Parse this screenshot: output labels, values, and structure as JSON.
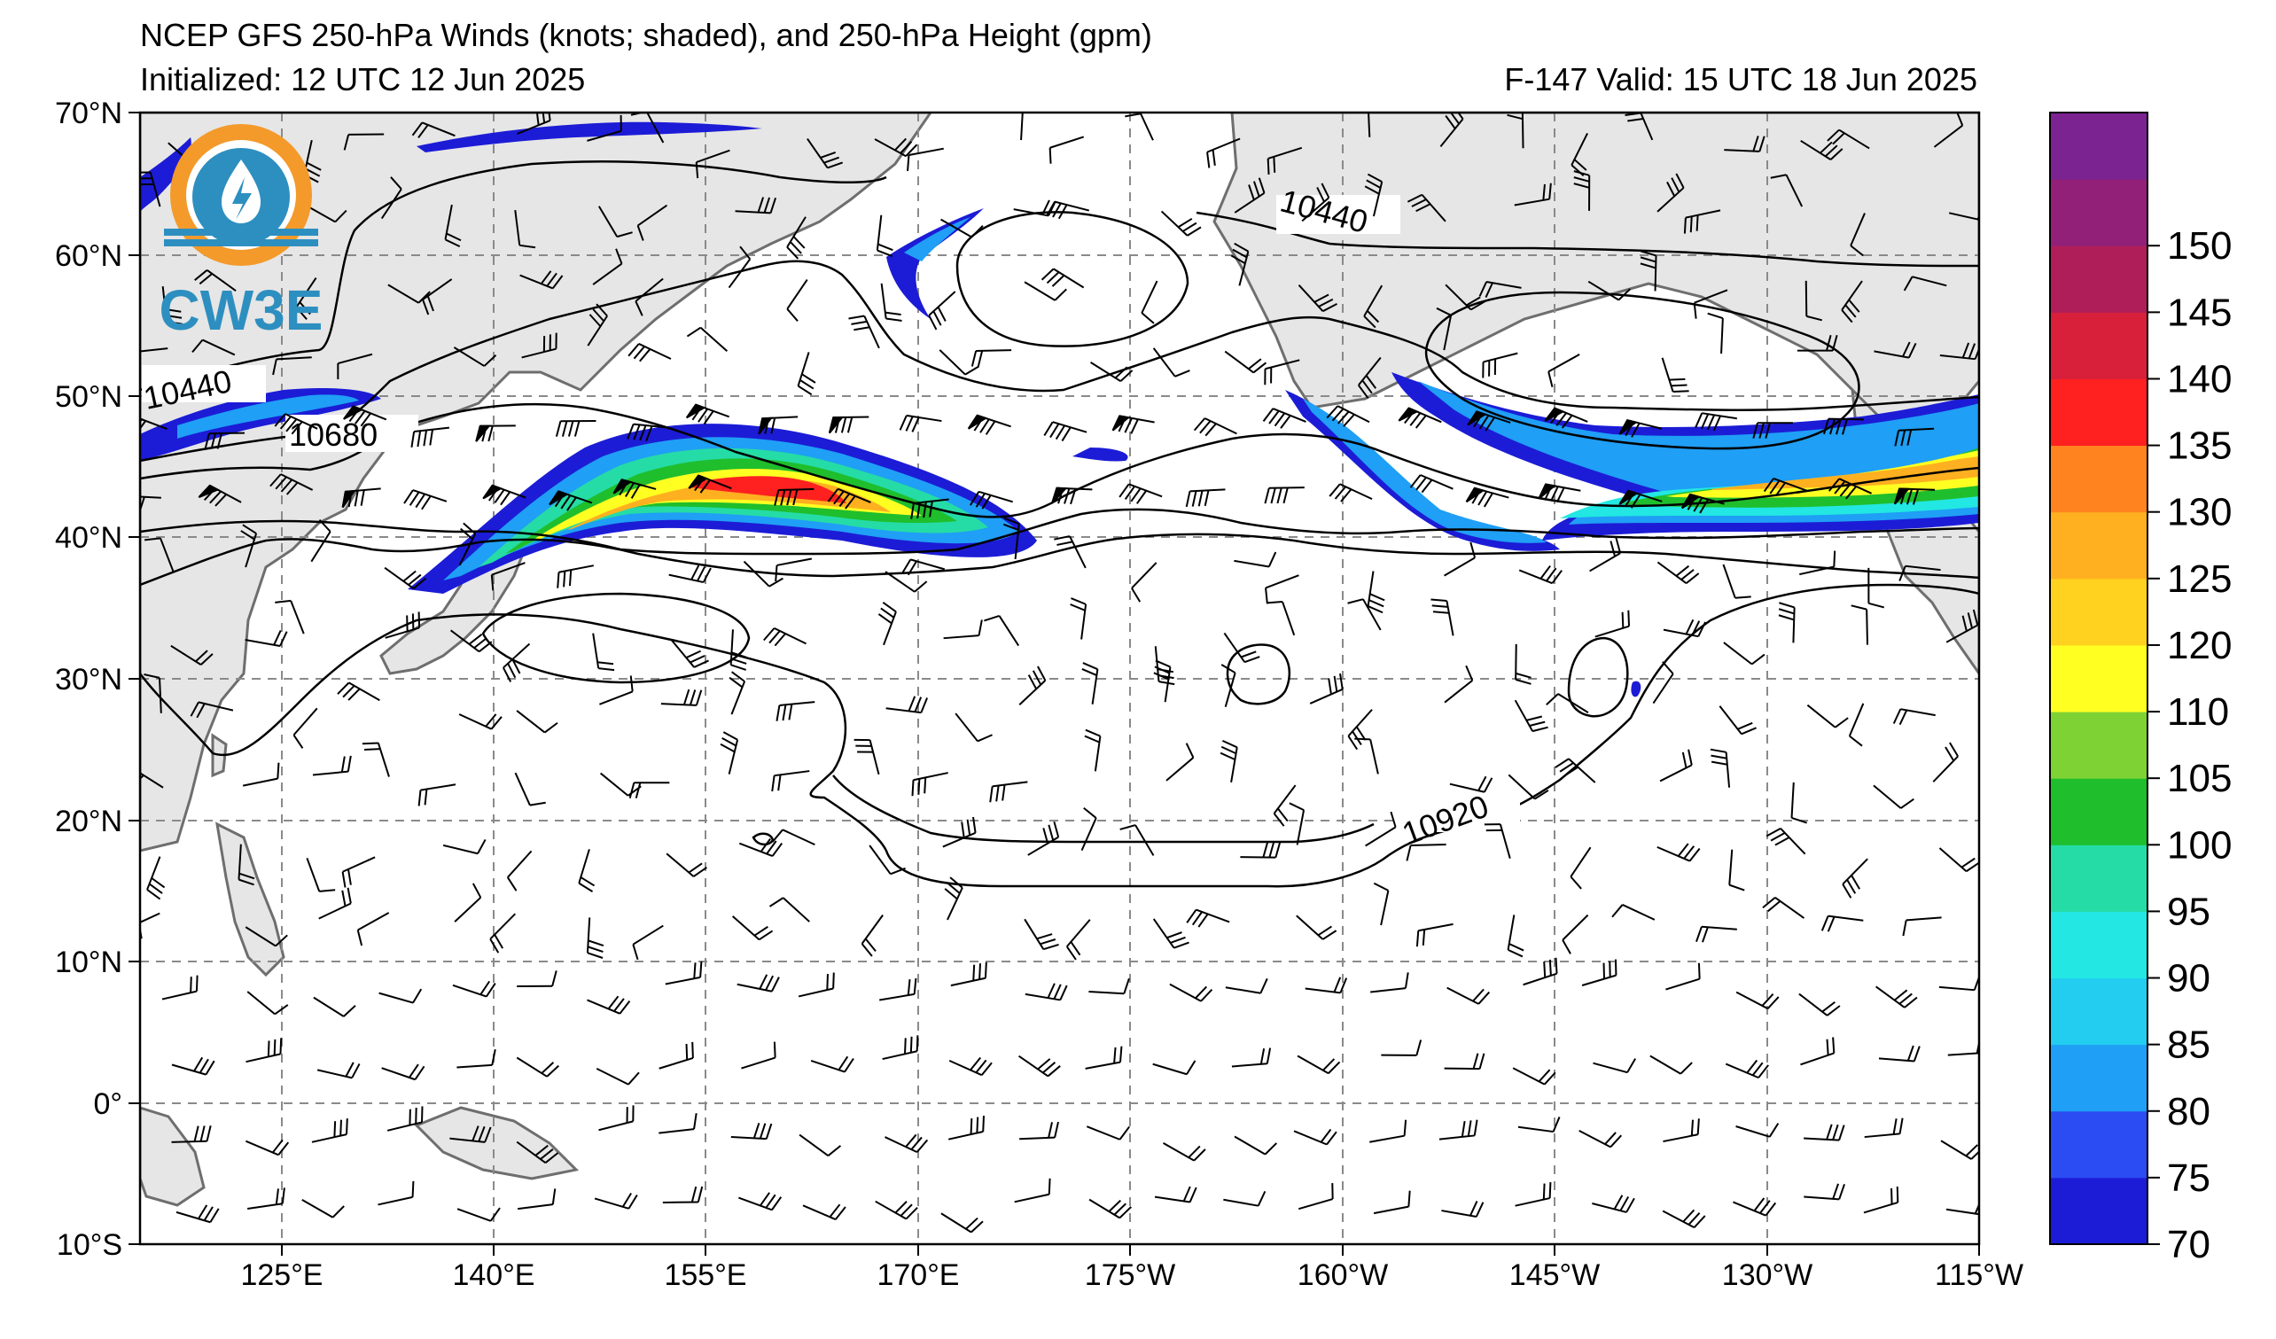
{
  "title": {
    "line1": "NCEP GFS 250-hPa Winds (knots; shaded), and 250-hPa Height (gpm)",
    "initialized": "Initialized: 12 UTC 12 Jun 2025",
    "valid": "F-147  Valid: 15 UTC 18 Jun 2025"
  },
  "logo": {
    "text": "CW3E"
  },
  "map": {
    "lat_labels": [
      "70°N",
      "60°N",
      "50°N",
      "40°N",
      "30°N",
      "20°N",
      "10°N",
      "0°",
      "10°S"
    ],
    "lon_labels": [
      "125°E",
      "140°E",
      "155°E",
      "170°E",
      "175°W",
      "160°W",
      "145°W",
      "130°W",
      "115°W"
    ],
    "extent": {
      "lon": [
        "115°E",
        "115°W"
      ],
      "lat": [
        "10°S",
        "70°N"
      ]
    },
    "gridlines": "dashed grey"
  },
  "contours": {
    "units": "gpm",
    "labels": [
      "10440",
      "10680",
      "10440",
      "10920"
    ]
  },
  "colorbar": {
    "ticks": [
      "70",
      "75",
      "80",
      "85",
      "90",
      "95",
      "100",
      "105",
      "110",
      "120",
      "125",
      "130",
      "135",
      "140",
      "145",
      "150"
    ],
    "colors": [
      "#1c1cd6",
      "#2b4cf2",
      "#1f9ff5",
      "#22cdf0",
      "#22e7e2",
      "#25dca6",
      "#1fbe2c",
      "#7fd234",
      "#ffff22",
      "#ffd21f",
      "#ffb020",
      "#ff8420",
      "#ff2020",
      "#d8203a",
      "#b01e5a",
      "#922078",
      "#7b2390"
    ]
  },
  "jets": [
    "West Pacific jet near 40°N–47°N, core >125 kt",
    "East Pacific jet near 44°N–47°N, core ~120 kt"
  ]
}
